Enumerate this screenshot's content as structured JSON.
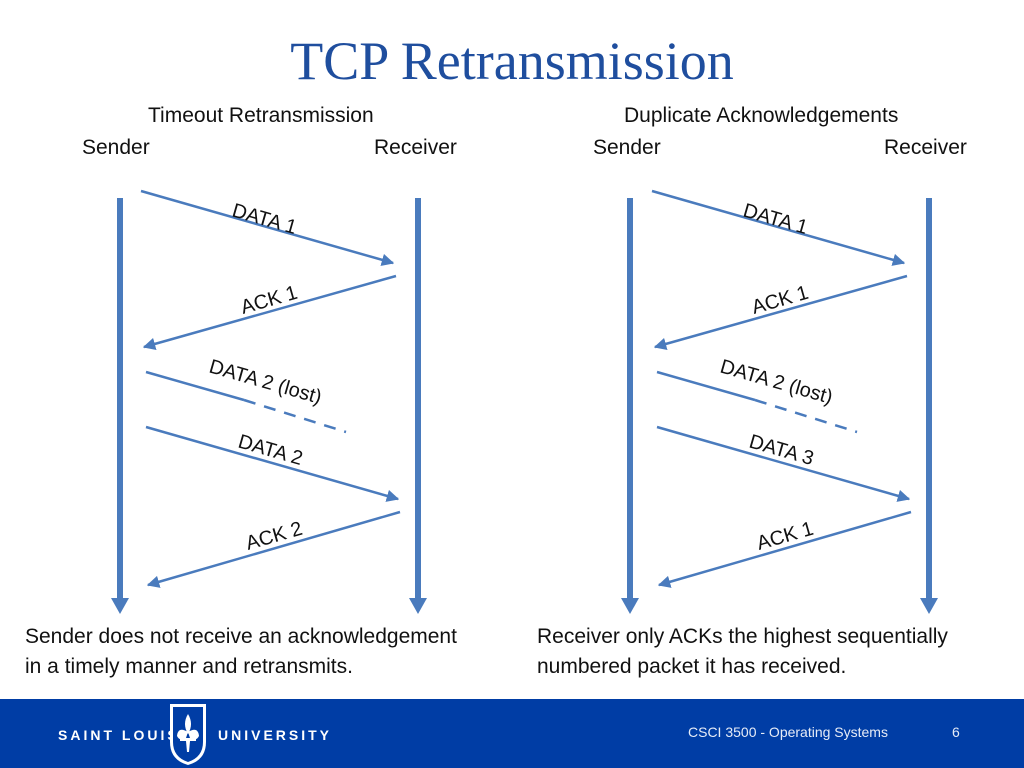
{
  "title": "TCP Retransmission",
  "left_panel": {
    "heading": "Timeout Retransmission",
    "sender_label": "Sender",
    "receiver_label": "Receiver",
    "messages": [
      "DATA 1",
      "ACK 1",
      "DATA 2 (lost)",
      "DATA 2",
      "ACK 2"
    ],
    "caption_line1": "Sender does not receive an acknowledgement",
    "caption_line2": "in a timely manner and retransmits."
  },
  "right_panel": {
    "heading": "Duplicate Acknowledgements",
    "sender_label": "Sender",
    "receiver_label": "Receiver",
    "messages": [
      "DATA 1",
      "ACK 1",
      "DATA 2 (lost)",
      "DATA 3",
      "ACK 1"
    ],
    "caption_line1": "Receiver only ACKs the highest sequentially",
    "caption_line2": "numbered packet it has received."
  },
  "footer": {
    "university_left": "SAINT LOUIS",
    "university_right": "UNIVERSITY",
    "course": "CSCI 3500 - Operating Systems",
    "page_number": "6"
  },
  "colors": {
    "title": "#1f4e9e",
    "arrow": "#4a7bbd",
    "footer_bg": "#003da5"
  },
  "icons": {
    "university_logo": "fleur-de-lis-shield-icon"
  }
}
